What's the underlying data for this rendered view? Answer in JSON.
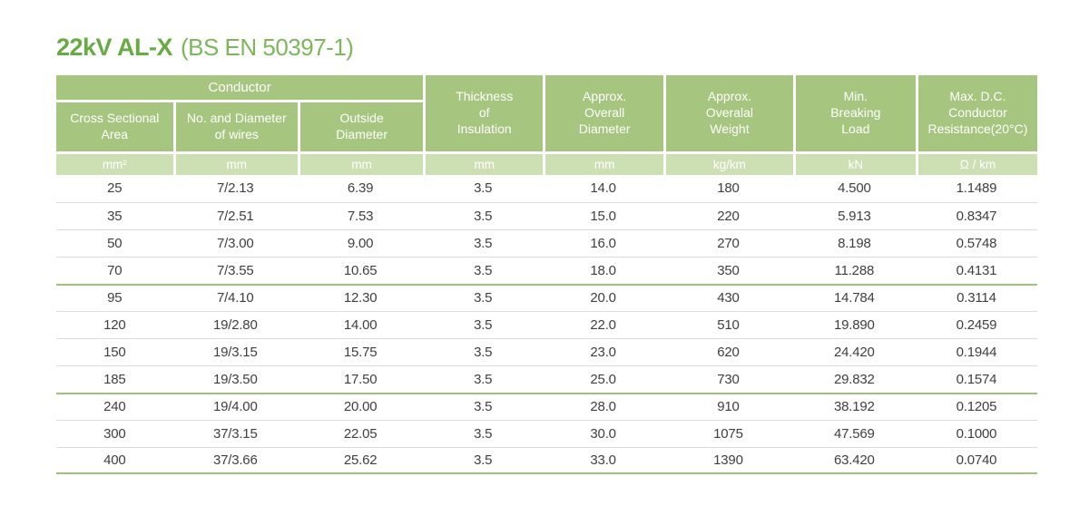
{
  "title": {
    "main": "22kV AL-X",
    "suffix": "(BS EN 50397-1)"
  },
  "table": {
    "conductor_group_label": "Conductor",
    "columns": [
      {
        "label": "Cross Sectional\nArea",
        "unit": "mm²"
      },
      {
        "label": "No. and Diameter\nof wires",
        "unit": "mm"
      },
      {
        "label": "Outside\nDiameter",
        "unit": "mm"
      },
      {
        "label": "Thickness\nof\nInsulation",
        "unit": "mm"
      },
      {
        "label": "Approx.\nOverall\nDiameter",
        "unit": "mm"
      },
      {
        "label": "Approx.\nOveralal\nWeight",
        "unit": "kg/km"
      },
      {
        "label": "Min.\nBreaking\nLoad",
        "unit": "kN"
      },
      {
        "label": "Max. D.C.\nConductor\nResistance(20°C)",
        "unit": "Ω / km"
      }
    ],
    "rows": [
      [
        "25",
        "7/2.13",
        "6.39",
        "3.5",
        "14.0",
        "180",
        "4.500",
        "1.1489"
      ],
      [
        "35",
        "7/2.51",
        "7.53",
        "3.5",
        "15.0",
        "220",
        "5.913",
        "0.8347"
      ],
      [
        "50",
        "7/3.00",
        "9.00",
        "3.5",
        "16.0",
        "270",
        "8.198",
        "0.5748"
      ],
      [
        "70",
        "7/3.55",
        "10.65",
        "3.5",
        "18.0",
        "350",
        "11.288",
        "0.4131"
      ],
      [
        "95",
        "7/4.10",
        "12.30",
        "3.5",
        "20.0",
        "430",
        "14.784",
        "0.3114"
      ],
      [
        "120",
        "19/2.80",
        "14.00",
        "3.5",
        "22.0",
        "510",
        "19.890",
        "0.2459"
      ],
      [
        "150",
        "19/3.15",
        "15.75",
        "3.5",
        "23.0",
        "620",
        "24.420",
        "0.1944"
      ],
      [
        "185",
        "19/3.50",
        "17.50",
        "3.5",
        "25.0",
        "730",
        "29.832",
        "0.1574"
      ],
      [
        "240",
        "19/4.00",
        "20.00",
        "3.5",
        "28.0",
        "910",
        "38.192",
        "0.1205"
      ],
      [
        "300",
        "37/3.15",
        "22.05",
        "3.5",
        "30.0",
        "1075",
        "47.569",
        "0.1000"
      ],
      [
        "400",
        "37/3.66",
        "25.62",
        "3.5",
        "33.0",
        "1390",
        "63.420",
        "0.0740"
      ]
    ],
    "group_start_rows": [
      4,
      8
    ]
  },
  "colors": {
    "title_green": "#67ab43",
    "title_suffix_green": "#7cb85a",
    "header_green": "#a6c57e",
    "units_green": "#cde0b4",
    "group_line_green": "#9cc476",
    "row_line_gray": "#dcdcdc",
    "cell_text": "#3f3f3f"
  }
}
